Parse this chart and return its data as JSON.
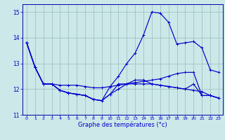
{
  "xlabel": "Graphe des températures (°c)",
  "x": [
    0,
    1,
    2,
    3,
    4,
    5,
    6,
    7,
    8,
    9,
    10,
    11,
    12,
    13,
    14,
    15,
    16,
    17,
    18,
    19,
    20,
    21,
    22,
    23
  ],
  "line1": [
    13.8,
    12.85,
    12.2,
    12.2,
    12.15,
    12.15,
    12.15,
    12.1,
    12.05,
    12.05,
    12.1,
    12.15,
    12.2,
    12.25,
    12.3,
    12.35,
    12.4,
    12.5,
    12.6,
    12.65,
    12.65,
    11.75,
    11.75,
    11.65
  ],
  "line2": [
    13.8,
    12.85,
    12.2,
    12.2,
    11.95,
    11.85,
    11.8,
    11.75,
    11.6,
    11.55,
    12.1,
    12.5,
    13.0,
    13.4,
    14.1,
    15.0,
    14.95,
    14.6,
    13.75,
    13.8,
    13.85,
    13.6,
    12.75,
    12.65
  ],
  "line3": [
    13.8,
    12.85,
    12.2,
    12.2,
    11.95,
    11.85,
    11.8,
    11.75,
    11.6,
    11.55,
    11.8,
    12.0,
    12.2,
    12.35,
    12.35,
    12.2,
    12.15,
    12.1,
    12.05,
    12.0,
    12.2,
    11.75,
    11.75,
    11.65
  ],
  "line4": [
    13.8,
    12.85,
    12.2,
    12.2,
    11.95,
    11.85,
    11.8,
    11.75,
    11.6,
    11.55,
    11.8,
    12.2,
    12.2,
    12.2,
    12.2,
    12.2,
    12.15,
    12.1,
    12.05,
    12.0,
    11.95,
    11.9,
    11.75,
    11.65
  ],
  "ylim": [
    11.0,
    15.3
  ],
  "yticks": [
    11,
    12,
    13,
    14,
    15
  ],
  "xticks": [
    0,
    1,
    2,
    3,
    4,
    5,
    6,
    7,
    8,
    9,
    10,
    11,
    12,
    13,
    14,
    15,
    16,
    17,
    18,
    19,
    20,
    21,
    22,
    23
  ],
  "line_color": "#0000cc",
  "bg_color": "#cce8e8",
  "grid_color": "#99bbbb",
  "spine_color": "#0000aa",
  "tick_color": "#0000cc",
  "label_color": "#0000cc"
}
